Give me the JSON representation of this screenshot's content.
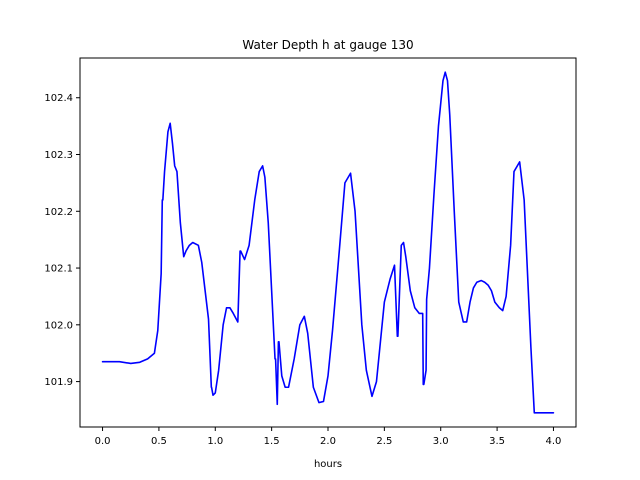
{
  "chart_data": {
    "type": "line",
    "title": "Water Depth h at gauge 130",
    "xlabel": "hours",
    "ylabel": "",
    "xlim": [
      -0.2,
      4.2
    ],
    "ylim": [
      101.82,
      102.47
    ],
    "xticks": [
      0.0,
      0.5,
      1.0,
      1.5,
      2.0,
      2.5,
      3.0,
      3.5,
      4.0
    ],
    "xtick_labels": [
      "0.0",
      "0.5",
      "1.0",
      "1.5",
      "2.0",
      "2.5",
      "3.0",
      "3.5",
      "4.0"
    ],
    "yticks": [
      101.9,
      102.0,
      102.1,
      102.2,
      102.3,
      102.4
    ],
    "ytick_labels": [
      "101.9",
      "102.0",
      "102.1",
      "102.2",
      "102.3",
      "102.4"
    ],
    "grid": false,
    "legend": "none",
    "series": [
      {
        "color": "#0000ff",
        "x": [
          0.0,
          0.15,
          0.25,
          0.33,
          0.4,
          0.46,
          0.49,
          0.52,
          0.53,
          0.535,
          0.55,
          0.58,
          0.6,
          0.62,
          0.64,
          0.66,
          0.69,
          0.72,
          0.74,
          0.77,
          0.8,
          0.85,
          0.88,
          0.91,
          0.94,
          0.965,
          0.967,
          0.98,
          1.0,
          1.03,
          1.07,
          1.1,
          1.13,
          1.16,
          1.2,
          1.22,
          1.225,
          1.26,
          1.3,
          1.35,
          1.39,
          1.42,
          1.44,
          1.47,
          1.5,
          1.53,
          1.535,
          1.55,
          1.56,
          1.565,
          1.59,
          1.62,
          1.65,
          1.7,
          1.75,
          1.79,
          1.82,
          1.87,
          1.92,
          1.96,
          2.0,
          2.04,
          2.1,
          2.15,
          2.2,
          2.24,
          2.27,
          2.3,
          2.34,
          2.39,
          2.43,
          2.46,
          2.5,
          2.55,
          2.59,
          2.615,
          2.62,
          2.65,
          2.67,
          2.69,
          2.73,
          2.77,
          2.81,
          2.84,
          2.845,
          2.85,
          2.87,
          2.875,
          2.9,
          2.94,
          2.98,
          3.02,
          3.04,
          3.06,
          3.08,
          3.12,
          3.16,
          3.2,
          3.23,
          3.26,
          3.29,
          3.32,
          3.36,
          3.39,
          3.42,
          3.45,
          3.48,
          3.52,
          3.55,
          3.58,
          3.62,
          3.65,
          3.7,
          3.74,
          3.77,
          3.8,
          3.83,
          3.85,
          3.87,
          3.91,
          3.95,
          3.98,
          4.0
        ],
        "y": [
          101.935,
          101.935,
          101.932,
          101.934,
          101.94,
          101.95,
          101.99,
          102.09,
          102.22,
          102.22,
          102.27,
          102.34,
          102.355,
          102.32,
          102.28,
          102.27,
          102.18,
          102.12,
          102.13,
          102.14,
          102.145,
          102.14,
          102.11,
          102.06,
          102.01,
          101.89,
          101.89,
          101.876,
          101.88,
          101.92,
          102.0,
          102.03,
          102.03,
          102.02,
          102.005,
          102.13,
          102.13,
          102.115,
          102.14,
          102.22,
          102.27,
          102.28,
          102.26,
          102.18,
          102.06,
          101.94,
          101.94,
          101.86,
          101.97,
          101.97,
          101.91,
          101.89,
          101.89,
          101.94,
          102.0,
          102.015,
          101.985,
          101.89,
          101.863,
          101.865,
          101.91,
          101.99,
          102.13,
          102.25,
          102.267,
          102.2,
          102.1,
          102.0,
          101.92,
          101.874,
          101.9,
          101.96,
          102.04,
          102.08,
          102.105,
          101.98,
          101.98,
          102.14,
          102.145,
          102.12,
          102.06,
          102.03,
          102.02,
          102.02,
          101.895,
          101.895,
          101.92,
          102.045,
          102.1,
          102.23,
          102.35,
          102.43,
          102.445,
          102.43,
          102.37,
          102.2,
          102.04,
          102.005,
          102.005,
          102.04,
          102.065,
          102.075,
          102.078,
          102.075,
          102.07,
          102.06,
          102.04,
          102.03,
          102.025,
          102.05,
          102.14,
          102.27,
          102.287,
          102.22,
          102.09,
          101.96,
          101.845,
          101.845,
          101.845,
          101.845,
          101.845,
          101.845,
          101.845
        ]
      }
    ]
  }
}
